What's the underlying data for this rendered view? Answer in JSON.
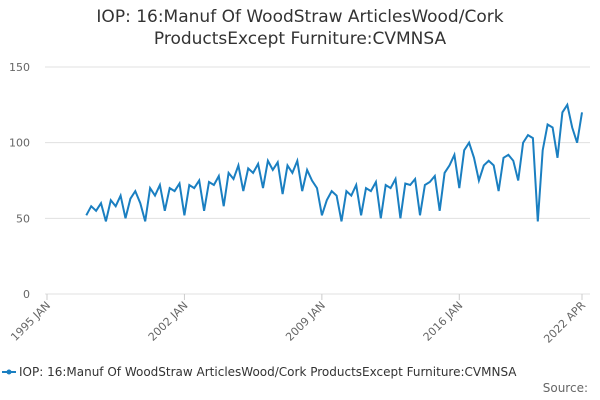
{
  "chart_data": {
    "type": "line",
    "title": "IOP: 16:Manuf Of WoodStraw ArticlesWood/Cork ProductsExcept Furniture:CVMNSA",
    "source": "Source:",
    "x": [
      "1997-01",
      "1997-04",
      "1997-07",
      "1997-10",
      "1998-01",
      "1998-04",
      "1998-07",
      "1998-10",
      "1999-01",
      "1999-04",
      "1999-07",
      "1999-10",
      "2000-01",
      "2000-04",
      "2000-07",
      "2000-10",
      "2001-01",
      "2001-04",
      "2001-07",
      "2001-10",
      "2002-01",
      "2002-04",
      "2002-07",
      "2002-10",
      "2003-01",
      "2003-04",
      "2003-07",
      "2003-10",
      "2004-01",
      "2004-04",
      "2004-07",
      "2004-10",
      "2005-01",
      "2005-04",
      "2005-07",
      "2005-10",
      "2006-01",
      "2006-04",
      "2006-07",
      "2006-10",
      "2007-01",
      "2007-04",
      "2007-07",
      "2007-10",
      "2008-01",
      "2008-04",
      "2008-07",
      "2008-10",
      "2009-01",
      "2009-04",
      "2009-07",
      "2009-10",
      "2010-01",
      "2010-04",
      "2010-07",
      "2010-10",
      "2011-01",
      "2011-04",
      "2011-07",
      "2011-10",
      "2012-01",
      "2012-04",
      "2012-07",
      "2012-10",
      "2013-01",
      "2013-04",
      "2013-07",
      "2013-10",
      "2014-01",
      "2014-04",
      "2014-07",
      "2014-10",
      "2015-01",
      "2015-04",
      "2015-07",
      "2015-10",
      "2016-01",
      "2016-04",
      "2016-07",
      "2016-10",
      "2017-01",
      "2017-04",
      "2017-07",
      "2017-10",
      "2018-01",
      "2018-04",
      "2018-07",
      "2018-10",
      "2019-01",
      "2019-04",
      "2019-07",
      "2019-10",
      "2020-01",
      "2020-04",
      "2020-07",
      "2020-10",
      "2021-01",
      "2021-04",
      "2021-07",
      "2021-10",
      "2022-01",
      "2022-04"
    ],
    "series": [
      {
        "name": "IOP: 16:Manuf Of WoodStraw ArticlesWood/Cork ProductsExcept Furniture:CVMNSA",
        "color": "#1a7fc1",
        "values": [
          52,
          58,
          55,
          60,
          48,
          62,
          58,
          65,
          50,
          63,
          68,
          60,
          48,
          70,
          65,
          72,
          55,
          70,
          68,
          73,
          52,
          72,
          70,
          75,
          55,
          74,
          72,
          78,
          58,
          80,
          76,
          85,
          68,
          83,
          80,
          86,
          70,
          88,
          82,
          87,
          66,
          85,
          80,
          88,
          68,
          82,
          75,
          70,
          52,
          62,
          68,
          65,
          48,
          68,
          65,
          72,
          52,
          70,
          68,
          74,
          50,
          72,
          70,
          76,
          50,
          73,
          72,
          76,
          52,
          72,
          74,
          78,
          55,
          80,
          85,
          92,
          70,
          95,
          100,
          90,
          75,
          85,
          88,
          85,
          68,
          90,
          92,
          88,
          75,
          100,
          105,
          103,
          48,
          95,
          112,
          110,
          90,
          120,
          125,
          110,
          100,
          120
        ]
      }
    ],
    "xlim": [
      "1995-01",
      "2022-04"
    ],
    "xticks": [
      {
        "value": "1995-01",
        "label": "1995 JAN"
      },
      {
        "value": "2002-01",
        "label": "2002 JAN"
      },
      {
        "value": "2009-01",
        "label": "2009 JAN"
      },
      {
        "value": "2016-01",
        "label": "2016 JAN"
      },
      {
        "value": "2022-04",
        "label": "2022 APR"
      }
    ],
    "ylim": [
      0,
      150
    ],
    "yticks": [
      0,
      50,
      100,
      150
    ],
    "grid": true
  }
}
